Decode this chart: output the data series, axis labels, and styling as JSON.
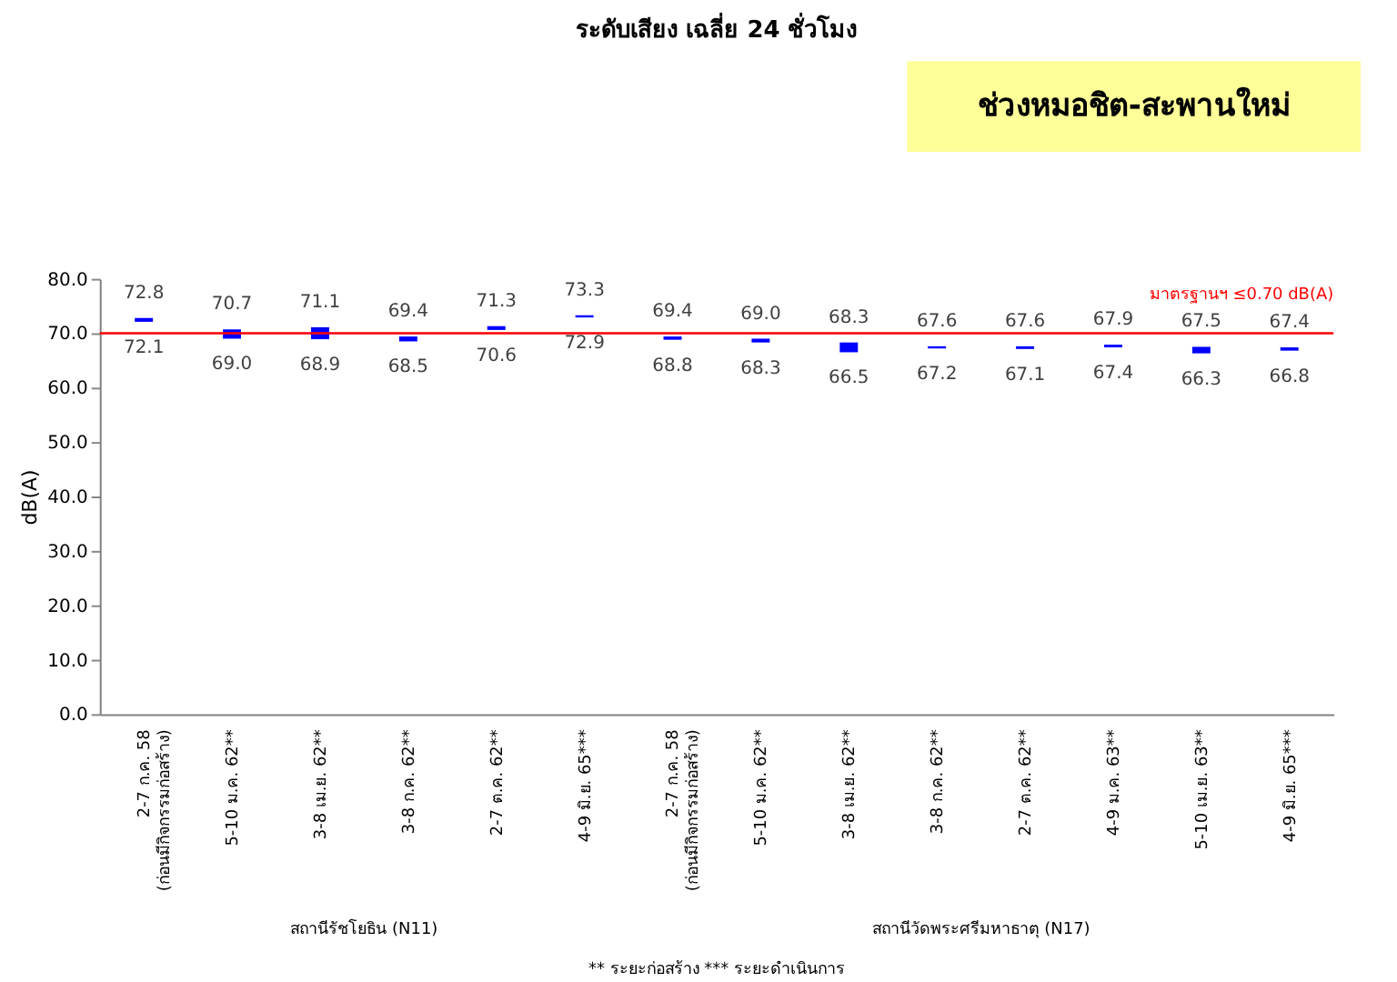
{
  "chart_data": {
    "type": "bar",
    "title": "ระดับเสียง เฉลี่ย 24 ชั่วโมง",
    "ylabel": "dB(A)",
    "categories": [
      "2-7 ก.ค. 58\n(ก่อนมีกิจกรรมก่อสร้าง)",
      "5-10 ม.ค. 62**",
      "3-8 เม.ย. 62**",
      "3-8 ก.ค. 62**",
      "2-7 ต.ค. 62**",
      "4-9 มิ.ย. 65***",
      "2-7 ก.ค. 58\n(ก่อนมีกิจกรรมก่อสร้าง)",
      "5-10 ม.ค. 62**",
      "3-8 เม.ย. 62**",
      "3-8 ก.ค. 62**",
      "2-7 ต.ค. 62**",
      "4-9 ม.ค. 63**",
      "5-10 เม.ย. 63**",
      "4-9 มิ.ย. 65***"
    ],
    "base": [
      72.1,
      69.0,
      68.9,
      68.5,
      70.6,
      72.9,
      68.8,
      68.3,
      66.5,
      67.2,
      67.1,
      67.4,
      66.3,
      66.8
    ],
    "values": [
      0.7,
      1.7,
      2.2,
      0.9,
      0.7,
      0.4,
      0.6,
      0.7,
      1.8,
      0.4,
      0.5,
      0.5,
      1.2,
      0.6
    ],
    "value_labels": [
      "72.8",
      "70.7",
      "71.1",
      "69.4",
      "71.3",
      "73.3",
      "69.4",
      "69.0",
      "68.3",
      "67.6",
      "67.6",
      "67.9",
      "67.5",
      "67.4"
    ],
    "color": "#0000ff",
    "ylim": [
      0,
      80
    ],
    "yticks": [
      {
        "value": 0,
        "label": "0.0"
      },
      {
        "value": 10,
        "label": "10.0"
      },
      {
        "value": 20,
        "label": "20.0"
      },
      {
        "value": 30,
        "label": "30.0"
      },
      {
        "value": 40,
        "label": "40.0"
      },
      {
        "value": 50,
        "label": "50.0"
      },
      {
        "value": 60,
        "label": "60.0"
      },
      {
        "value": 70,
        "label": "70.0"
      },
      {
        "value": 80,
        "label": "80.0"
      }
    ],
    "grid": false,
    "ref_lines": [
      {
        "axis": "y",
        "value": 70,
        "label": "มาตรฐานฯ ≤0.70 dB(A)",
        "color": "#ff0000"
      }
    ],
    "annotations": [
      "ช่วงหมอชิต-สะพานใหม่",
      "สถานีรัชโยธิน (N11)",
      "สถานีวัดพระศรีมหาธาตุ (N17)",
      "** ระยะก่อสร้าง    *** ระยะดำเนินการ",
      "72.1",
      "69.0",
      "68.9",
      "68.5",
      "70.6",
      "72.9",
      "68.8",
      "68.3",
      "66.5",
      "67.2",
      "67.1",
      "67.4",
      "66.3",
      "66.8"
    ]
  }
}
